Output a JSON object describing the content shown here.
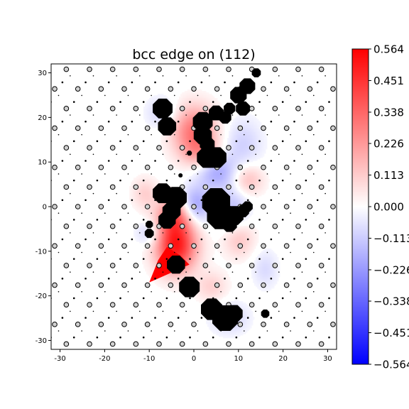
{
  "chart_data": {
    "type": "heatmap",
    "title": "bcc edge on (112)",
    "xlabel": "",
    "ylabel": "",
    "xlim": [
      -32,
      32
    ],
    "ylim": [
      -32,
      32
    ],
    "x_ticks": [
      -30,
      -20,
      -10,
      0,
      10,
      20,
      30
    ],
    "y_ticks": [
      -30,
      -20,
      -10,
      0,
      10,
      20,
      30
    ],
    "colorbar": {
      "cmap": "bwr",
      "min": -0.564,
      "max": 0.564,
      "tick_values": [
        0.564,
        0.451,
        0.338,
        0.226,
        0.113,
        0.0,
        -0.113,
        -0.226,
        -0.338,
        -0.451,
        -0.564
      ],
      "tick_labels": [
        "0.564",
        "0.451",
        "0.338",
        "0.226",
        "0.113",
        "0.000",
        "−0.113",
        "−0.226",
        "−0.338",
        "−0.451",
        "−0.564"
      ]
    },
    "field_blobs": [
      {
        "x": -4,
        "y": -9,
        "sx": 3.2,
        "sy": 4.0,
        "value": 0.5
      },
      {
        "x": -4,
        "y": -2,
        "sx": 3.0,
        "sy": 3.0,
        "value": 0.32
      },
      {
        "x": 0,
        "y": 17,
        "sx": 3.5,
        "sy": 4.0,
        "value": 0.3
      },
      {
        "x": 2,
        "y": 12,
        "sx": 3.0,
        "sy": 2.5,
        "value": 0.16
      },
      {
        "x": 5,
        "y": 8,
        "sx": 3.0,
        "sy": 3.0,
        "value": -0.2
      },
      {
        "x": 0,
        "y": 0,
        "sx": 2.5,
        "sy": 3.0,
        "value": -0.26
      },
      {
        "x": 9,
        "y": -1,
        "sx": 2.5,
        "sy": 4.0,
        "value": -0.14
      },
      {
        "x": 11,
        "y": 14,
        "sx": 3.0,
        "sy": 4.0,
        "value": -0.1
      },
      {
        "x": 12,
        "y": 6,
        "sx": 2.5,
        "sy": 2.5,
        "value": 0.15
      },
      {
        "x": 10,
        "y": -7,
        "sx": 2.5,
        "sy": 3.0,
        "value": 0.15
      },
      {
        "x": -10,
        "y": -6,
        "sx": 2.0,
        "sy": 2.0,
        "value": -0.12
      },
      {
        "x": -7,
        "y": 21,
        "sx": 2.5,
        "sy": 2.5,
        "value": -0.1
      },
      {
        "x": -11,
        "y": 3,
        "sx": 2.0,
        "sy": 2.5,
        "value": 0.1
      },
      {
        "x": 4,
        "y": -18,
        "sx": 2.5,
        "sy": 2.5,
        "value": 0.1
      },
      {
        "x": 8,
        "y": -25,
        "sx": 3.0,
        "sy": 2.5,
        "value": -0.1
      },
      {
        "x": 16,
        "y": -14,
        "sx": 2.0,
        "sy": 3.0,
        "value": -0.08
      }
    ],
    "strong_region": {
      "value": 0.564,
      "vertices": [
        [
          -10,
          -17
        ],
        [
          -8,
          -12
        ],
        [
          -6,
          -9
        ],
        [
          -3,
          -11
        ],
        [
          -1,
          -13
        ],
        [
          -10,
          -17
        ]
      ]
    },
    "atom_lattice": {
      "a1": [
        5.2,
        0
      ],
      "a2": [
        2.6,
        4.4
      ],
      "offsets": [
        [
          0,
          0,
          "circle"
        ],
        [
          1.73,
          1.47,
          "small"
        ],
        [
          3.47,
          2.93,
          "dot"
        ]
      ]
    },
    "core_atoms": [
      {
        "x": -7,
        "y": 22,
        "r": 2.4
      },
      {
        "x": -6,
        "y": 18,
        "r": 2.2
      },
      {
        "x": 2,
        "y": 19,
        "r": 2.4
      },
      {
        "x": 5,
        "y": 21,
        "r": 1.8
      },
      {
        "x": 7,
        "y": 20,
        "r": 1.5
      },
      {
        "x": 8,
        "y": 22,
        "r": 1.4
      },
      {
        "x": 10,
        "y": 25,
        "r": 2.0
      },
      {
        "x": 11,
        "y": 22,
        "r": 1.7
      },
      {
        "x": 12,
        "y": 27,
        "r": 1.9
      },
      {
        "x": 14,
        "y": 30,
        "r": 1.1
      },
      {
        "x": 2,
        "y": 16,
        "r": 2.2
      },
      {
        "x": 3,
        "y": 14,
        "r": 1.8
      },
      {
        "x": 3,
        "y": 11,
        "r": 2.5
      },
      {
        "x": 5,
        "y": 11,
        "r": 2.5
      },
      {
        "x": -7,
        "y": 3,
        "r": 2.4
      },
      {
        "x": -4,
        "y": 2,
        "r": 2.6
      },
      {
        "x": -5,
        "y": -1,
        "r": 2.2
      },
      {
        "x": -6,
        "y": -3,
        "r": 2.1
      },
      {
        "x": 5,
        "y": 1,
        "r": 3.4
      },
      {
        "x": 6,
        "y": -2,
        "r": 3.3
      },
      {
        "x": 9,
        "y": -2,
        "r": 2.3
      },
      {
        "x": 8,
        "y": -4,
        "r": 1.8
      },
      {
        "x": 11,
        "y": -1,
        "r": 1.5
      },
      {
        "x": 12,
        "y": 0,
        "r": 1.3
      },
      {
        "x": -10,
        "y": -6,
        "r": 1.1
      },
      {
        "x": -4,
        "y": -13,
        "r": 2.2
      },
      {
        "x": -1,
        "y": -18,
        "r": 2.5
      },
      {
        "x": 4,
        "y": -23,
        "r": 2.6
      },
      {
        "x": 7,
        "y": -25,
        "r": 3.1
      },
      {
        "x": 9,
        "y": -24,
        "r": 2.1
      },
      {
        "x": 16,
        "y": -24,
        "r": 1.0
      },
      {
        "x": -10,
        "y": -4,
        "r": 0.9
      },
      {
        "x": -1,
        "y": 12,
        "r": 0.6
      },
      {
        "x": -3,
        "y": 7,
        "r": 0.5
      }
    ]
  }
}
